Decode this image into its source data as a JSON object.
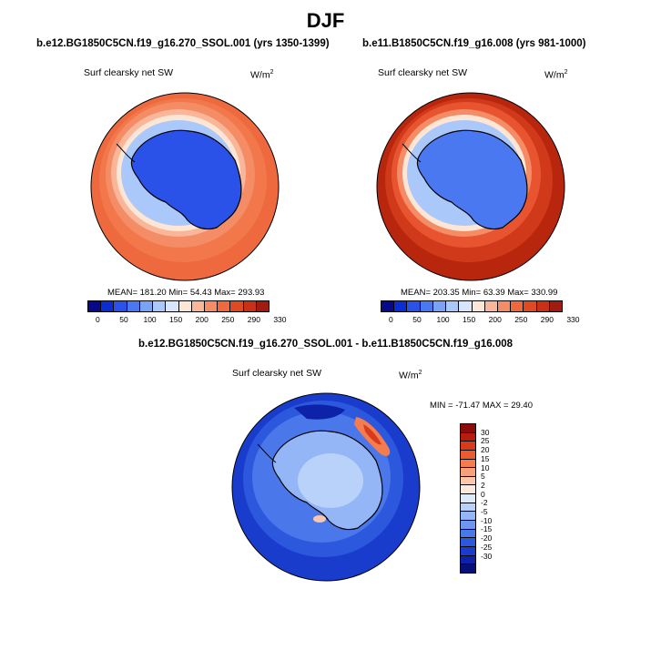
{
  "season": "DJF",
  "left_panel": {
    "case": "b.e12.BG1850C5CN.f19_g16.270_SSOL.001 (yrs 1350-1399)",
    "variable": "Surf clearsky net SW",
    "units_base": "W/m",
    "units_exp": "2",
    "stats": "MEAN= 181.20  Min=  54.43  Max= 293.93",
    "mean_value": 181.2,
    "min_value": 54.43,
    "max_value": 293.93
  },
  "right_panel": {
    "case": "b.e11.B1850C5CN.f19_g16.008 (yrs 981-1000)",
    "variable": "Surf clearsky net SW",
    "units_base": "W/m",
    "units_exp": "2",
    "stats": "MEAN= 203.35  Min=  63.39  Max= 330.99",
    "mean_value": 203.35,
    "min_value": 63.39,
    "max_value": 330.99
  },
  "diff_panel": {
    "title": "b.e12.BG1850C5CN.f19_g16.270_SSOL.001 - b.e11.B1850C5CN.f19_g16.008",
    "variable": "Surf clearsky net SW",
    "units_base": "W/m",
    "units_exp": "2",
    "stats": "MIN = -71.47 MAX =  29.40",
    "min_value": -71.47,
    "max_value": 29.4
  },
  "abs_colorbar": {
    "ticks": [
      "0",
      "50",
      "100",
      "150",
      "200",
      "250",
      "290",
      "330"
    ],
    "colors": [
      "#08088c",
      "#0c2dd2",
      "#2a52e8",
      "#4a78f0",
      "#7aa3f6",
      "#aac8fa",
      "#d8e6fd",
      "#fde6d6",
      "#f9b698",
      "#f48c66",
      "#ee6a3e",
      "#e04a22",
      "#c83018",
      "#a01c10"
    ]
  },
  "diff_colorbar": {
    "ticks": [
      "30",
      "25",
      "20",
      "15",
      "10",
      "5",
      "2",
      "0",
      "-2",
      "-5",
      "-10",
      "-15",
      "-20",
      "-25",
      "-30"
    ],
    "colors": [
      "#8c0c0c",
      "#b81c10",
      "#d83a1c",
      "#ec5a30",
      "#f47c4e",
      "#f8a07a",
      "#fbc6ac",
      "#fde8de",
      "#dcebfc",
      "#b8d2fa",
      "#94b6f6",
      "#6e96f0",
      "#4a78ea",
      "#2c58de",
      "#1a3ccc",
      "#0c22a8",
      "#081078"
    ]
  }
}
